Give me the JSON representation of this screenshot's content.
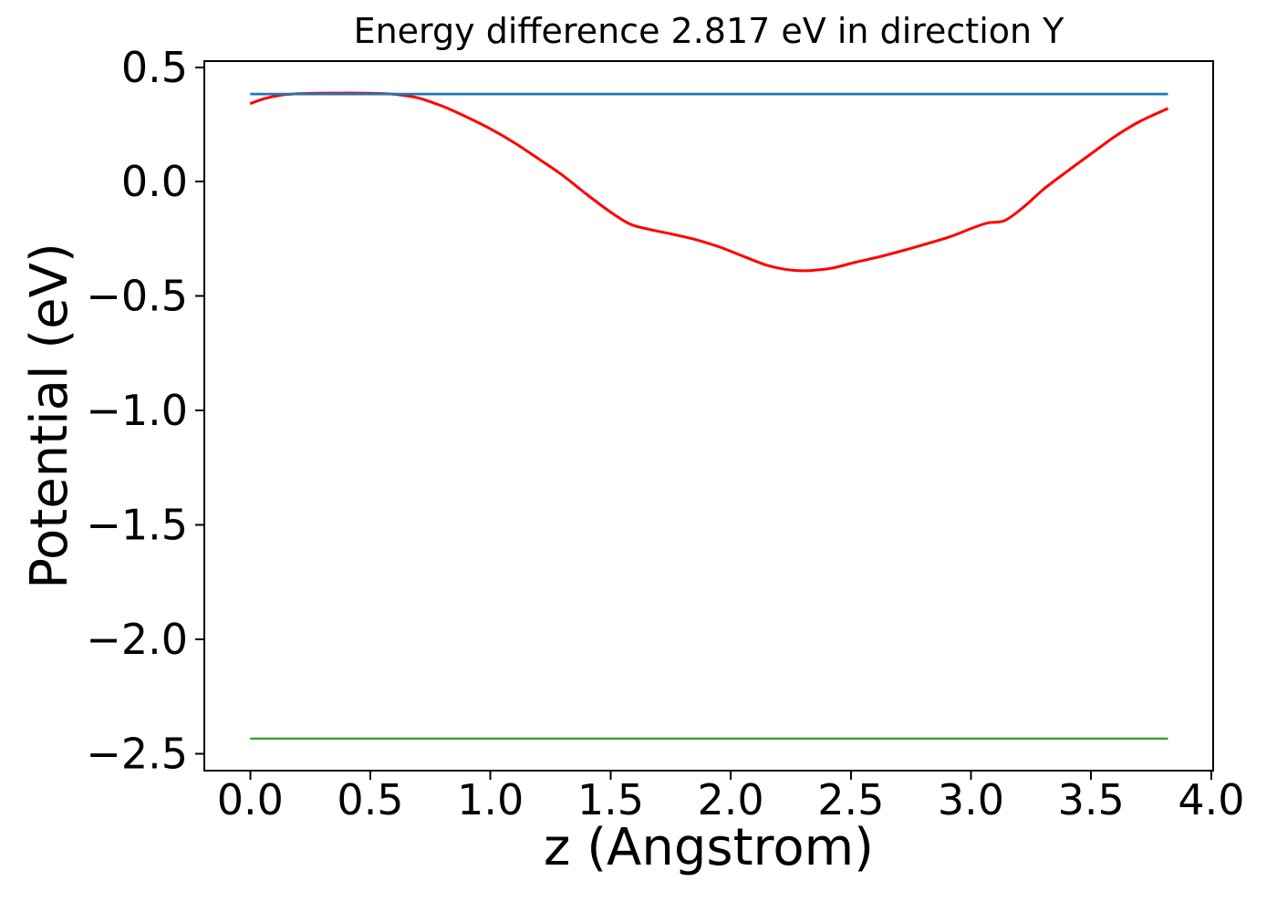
{
  "chart_data": {
    "type": "line",
    "title": "Energy difference 2.817 eV in direction Y",
    "xlabel": "z (Angstrom)",
    "ylabel": "Potential (eV)",
    "xlim": [
      -0.191,
      4.008
    ],
    "ylim": [
      -2.574,
      0.527
    ],
    "grid": false,
    "legend": "none",
    "xticks": [
      0.0,
      0.5,
      1.0,
      1.5,
      2.0,
      2.5,
      3.0,
      3.5,
      4.0
    ],
    "xtick_labels": [
      "0.0",
      "0.5",
      "1.0",
      "1.5",
      "2.0",
      "2.5",
      "3.0",
      "3.5",
      "4.0"
    ],
    "yticks": [
      0.5,
      0.0,
      -0.5,
      -1.0,
      -1.5,
      -2.0,
      -2.5
    ],
    "ytick_labels": [
      "0.5",
      "0.0",
      "−0.5",
      "−1.0",
      "−1.5",
      "−2.0",
      "−2.5"
    ],
    "energy_difference_label_eV": "2.817",
    "direction_label": "Y",
    "series": [
      {
        "name": "red-curve",
        "color": "#ff0000",
        "width": 3,
        "smooth": true,
        "points": [
          [
            0.0,
            0.341
          ],
          [
            0.06,
            0.363
          ],
          [
            0.12,
            0.377
          ],
          [
            0.18,
            0.383
          ],
          [
            0.25,
            0.386
          ],
          [
            0.35,
            0.387
          ],
          [
            0.45,
            0.387
          ],
          [
            0.55,
            0.385
          ],
          [
            0.62,
            0.38
          ],
          [
            0.7,
            0.366
          ],
          [
            0.8,
            0.33
          ],
          [
            0.9,
            0.283
          ],
          [
            1.0,
            0.231
          ],
          [
            1.1,
            0.17
          ],
          [
            1.2,
            0.1
          ],
          [
            1.3,
            0.028
          ],
          [
            1.4,
            -0.055
          ],
          [
            1.5,
            -0.133
          ],
          [
            1.58,
            -0.185
          ],
          [
            1.66,
            -0.208
          ],
          [
            1.75,
            -0.228
          ],
          [
            1.85,
            -0.252
          ],
          [
            1.95,
            -0.284
          ],
          [
            2.05,
            -0.325
          ],
          [
            2.15,
            -0.365
          ],
          [
            2.24,
            -0.385
          ],
          [
            2.32,
            -0.389
          ],
          [
            2.42,
            -0.378
          ],
          [
            2.52,
            -0.352
          ],
          [
            2.62,
            -0.328
          ],
          [
            2.72,
            -0.3
          ],
          [
            2.82,
            -0.27
          ],
          [
            2.92,
            -0.238
          ],
          [
            3.0,
            -0.205
          ],
          [
            3.07,
            -0.18
          ],
          [
            3.14,
            -0.17
          ],
          [
            3.22,
            -0.11
          ],
          [
            3.3,
            -0.035
          ],
          [
            3.4,
            0.045
          ],
          [
            3.5,
            0.122
          ],
          [
            3.6,
            0.198
          ],
          [
            3.7,
            0.262
          ],
          [
            3.82,
            0.32
          ]
        ]
      },
      {
        "name": "blue-line",
        "color": "#1f77b4",
        "width": 2.8,
        "smooth": false,
        "points": [
          [
            0.0,
            0.383
          ],
          [
            3.82,
            0.383
          ]
        ]
      },
      {
        "name": "green-line",
        "color": "#2ca02c",
        "width": 2.2,
        "smooth": false,
        "points": [
          [
            0.0,
            -2.434
          ],
          [
            3.82,
            -2.434
          ]
        ]
      }
    ]
  }
}
